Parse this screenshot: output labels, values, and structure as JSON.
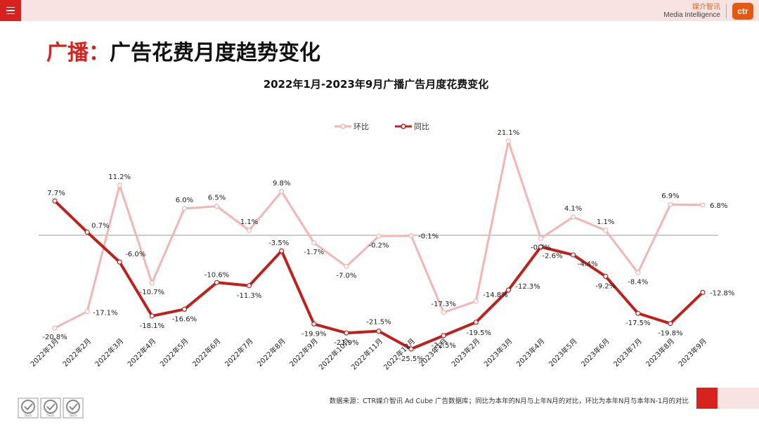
{
  "header": {
    "logo_cn": "媒介智讯",
    "logo_en": "Media Intelligence",
    "logo_badge": "ctr"
  },
  "page": {
    "title_accent": "广播：",
    "title_rest": "广告花费月度趋势变化"
  },
  "chart_data": {
    "type": "line",
    "title": "2022年1月-2023年9月广播广告月度花费变化",
    "categories": [
      "2022年1月",
      "2022年2月",
      "2022年3月",
      "2022年4月",
      "2022年5月",
      "2022年6月",
      "2022年7月",
      "2022年8月",
      "2022年9月",
      "2022年10月",
      "2022年11月",
      "2022年12月",
      "2023年1月",
      "2023年2月",
      "2023年3月",
      "2023年4月",
      "2023年5月",
      "2023年6月",
      "2023年7月",
      "2023年8月",
      "2023年9月"
    ],
    "series": [
      {
        "name": "环比",
        "color": "#f2b5b3",
        "values": [
          -20.8,
          -17.1,
          11.2,
          -10.7,
          6.0,
          6.5,
          1.1,
          9.8,
          -1.7,
          -7.0,
          -0.2,
          -0.1,
          -17.3,
          -14.8,
          21.1,
          -0.7,
          4.1,
          1.1,
          -8.4,
          6.9,
          6.8
        ],
        "labels": [
          "-20.8%",
          "-17.1%",
          "11.2%",
          "-10.7%",
          "6.0%",
          "6.5%",
          "1.1%",
          "9.8%",
          "-1.7%",
          "-7.0%",
          "-0.2%",
          "-0.1%",
          "-17.3%",
          "-14.8%",
          "21.1%",
          "-0.7%",
          "4.1%",
          "1.1%",
          "-8.4%",
          "6.9%",
          "6.8%"
        ]
      },
      {
        "name": "同比",
        "color": "#c0201d",
        "values": [
          7.7,
          0.7,
          -6.0,
          -18.1,
          -16.6,
          -10.6,
          -11.3,
          -3.5,
          -19.9,
          -21.9,
          -21.5,
          -25.5,
          -22.5,
          -19.5,
          -12.3,
          -2.6,
          -4.4,
          -9.2,
          -17.5,
          -19.8,
          -12.8
        ],
        "labels": [
          "7.7%",
          "0.7%",
          "-6.0%",
          "-18.1%",
          "-16.6%",
          "-10.6%",
          "-11.3%",
          "-3.5%",
          "-19.9%",
          "-21.9%",
          "-21.5%",
          "-25.5%",
          "-22.5%",
          "-19.5%",
          "-12.3%",
          "-2.6%",
          "-4.4%",
          "-9.2%",
          "-17.5%",
          "-19.8%",
          "-12.8%"
        ]
      }
    ],
    "ylim": [
      -30,
      25
    ],
    "grid": false,
    "legend": "top-center"
  },
  "footer": {
    "source": "数据来源：CTR媒介智讯 Ad Cube 广告数据库；同比为本年的N月与上年N月的对比，环比为本年N月与本年N-1月的对比",
    "cert_label": "SGS"
  }
}
